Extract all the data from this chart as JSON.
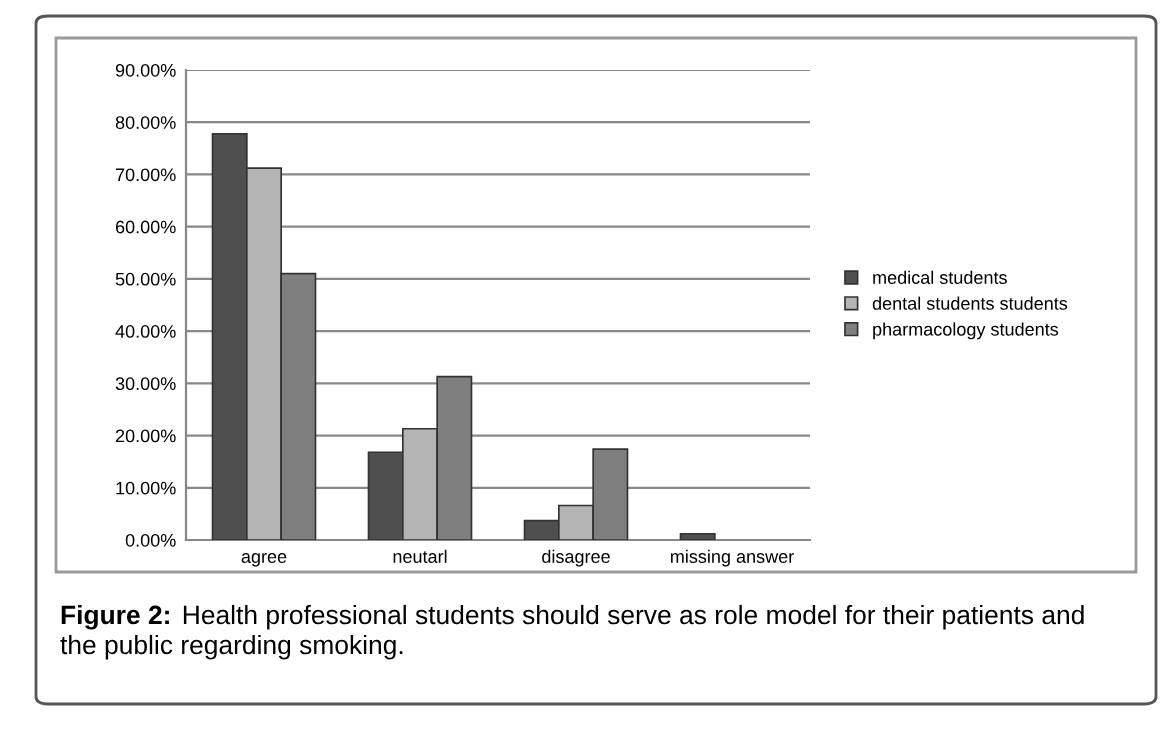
{
  "chart_data": {
    "type": "bar",
    "categories": [
      "agree",
      "neutarl",
      "disagree",
      "missing answer"
    ],
    "series": [
      {
        "name": "medical students",
        "color": "#4f4f4f",
        "values": [
          77.8,
          16.8,
          3.7,
          1.2
        ]
      },
      {
        "name": "dental students students",
        "color": "#b4b4b4",
        "values": [
          71.2,
          21.3,
          6.6,
          null
        ]
      },
      {
        "name": "pharmacology students",
        "color": "#7f7f7f",
        "values": [
          51.0,
          31.3,
          17.4,
          null
        ]
      }
    ],
    "ylim": [
      0,
      90
    ],
    "yticks": [
      {
        "value": 0,
        "label": "0.00%"
      },
      {
        "value": 10,
        "label": "10.00%"
      },
      {
        "value": 20,
        "label": "20.00%"
      },
      {
        "value": 30,
        "label": "30.00%"
      },
      {
        "value": 40,
        "label": "40.00%"
      },
      {
        "value": 50,
        "label": "50.00%"
      },
      {
        "value": 60,
        "label": "60.00%"
      },
      {
        "value": 70,
        "label": "70.00%"
      },
      {
        "value": 80,
        "label": "80.00%"
      },
      {
        "value": 90,
        "label": "90.00%"
      }
    ],
    "grid": "y",
    "legend": "right",
    "annotations": [
      "Figure 2:",
      "Health professional students should serve as role model for their patients and the public regarding smoking."
    ]
  }
}
